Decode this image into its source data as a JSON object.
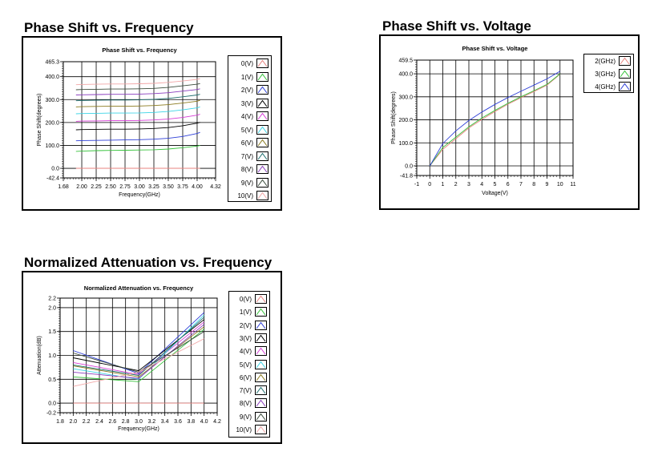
{
  "sections": {
    "phase_freq_title": "Phase Shift vs. Frequency",
    "phase_volt_title": "Phase Shift vs. Voltage",
    "atten_title": "Normalized Attenuation vs. Frequency"
  },
  "colors": {
    "grid": "#000000",
    "palette": [
      "#e8837f",
      "#35c23a",
      "#2e3fd8",
      "#000000",
      "#d63dd6",
      "#3bd4e6",
      "#8a7a1e",
      "#1f6f6f",
      "#8a3dbe",
      "#3a4a3a",
      "#f2a7a7"
    ]
  },
  "chart_data": [
    {
      "type": "line",
      "title": "Phase Shift vs. Frequency",
      "xlabel": "Frequency(GHz)",
      "ylabel": "Phase Shift(degrees)",
      "xlim": [
        1.68,
        4.32
      ],
      "ylim": [
        -41.8,
        465.3
      ],
      "x_ticks": [
        "1.68",
        "2.00",
        "2.25",
        "2.50",
        "2.75",
        "3.00",
        "3.25",
        "3.50",
        "3.75",
        "4.00",
        "4.32"
      ],
      "y_ticks": [
        "465.3",
        "400.0",
        "300.0",
        "200.0",
        "100.0",
        "0.0",
        "-42.4"
      ],
      "grid": true,
      "legend": "right",
      "x": [
        1.9,
        2.0,
        2.25,
        2.5,
        2.75,
        3.0,
        3.25,
        3.5,
        3.75,
        4.0,
        4.05
      ],
      "series": [
        {
          "name": "0(V)",
          "values": [
            0,
            0,
            0,
            0,
            0,
            0,
            0,
            0,
            0,
            0,
            0
          ]
        },
        {
          "name": "1(V)",
          "values": [
            74,
            75,
            77,
            78,
            79,
            80,
            81,
            84,
            90,
            97,
            100
          ]
        },
        {
          "name": "2(V)",
          "values": [
            120,
            121,
            122,
            123,
            124,
            125,
            127,
            131,
            139,
            152,
            157
          ]
        },
        {
          "name": "3(V)",
          "values": [
            168,
            169,
            170,
            171,
            171,
            172,
            174,
            178,
            186,
            197,
            201
          ]
        },
        {
          "name": "4(V)",
          "values": [
            205,
            206,
            207,
            208,
            208,
            209,
            211,
            215,
            222,
            232,
            236
          ]
        },
        {
          "name": "5(V)",
          "values": [
            238,
            239,
            240,
            241,
            241,
            242,
            244,
            248,
            255,
            264,
            268
          ]
        },
        {
          "name": "6(V)",
          "values": [
            268,
            269,
            270,
            271,
            271,
            272,
            274,
            278,
            285,
            293,
            297
          ]
        },
        {
          "name": "7(V)",
          "values": [
            295,
            296,
            297,
            298,
            298,
            299,
            301,
            305,
            312,
            320,
            323
          ]
        },
        {
          "name": "8(V)",
          "values": [
            320,
            321,
            322,
            323,
            323,
            324,
            326,
            330,
            337,
            344,
            347
          ]
        },
        {
          "name": "9(V)",
          "values": [
            343,
            344,
            345,
            346,
            346,
            347,
            349,
            353,
            360,
            367,
            370
          ]
        },
        {
          "name": "10(V)",
          "values": [
            365,
            366,
            367,
            368,
            368,
            369,
            371,
            375,
            381,
            388,
            391
          ]
        }
      ]
    },
    {
      "type": "line",
      "title": "Phase Shift vs. Voltage",
      "xlabel": "Voltage(V)",
      "ylabel": "Phase Shift(degrees)",
      "xlim": [
        -1,
        11
      ],
      "ylim": [
        -41.8,
        459.5
      ],
      "x_ticks": [
        "-1",
        "0",
        "1",
        "2",
        "3",
        "4",
        "5",
        "6",
        "7",
        "8",
        "9",
        "10",
        "11"
      ],
      "y_ticks": [
        "459.5",
        "400.0",
        "300.0",
        "200.0",
        "100.0",
        "0.0",
        "-41.8"
      ],
      "grid": true,
      "legend": "right",
      "x": [
        0,
        1,
        2,
        3,
        4,
        5,
        6,
        7,
        8,
        9,
        10
      ],
      "series": [
        {
          "name": "2(GHz)",
          "values": [
            0,
            72,
            118,
            165,
            202,
            236,
            268,
            296,
            323,
            351,
            398
          ]
        },
        {
          "name": "3(GHz)",
          "values": [
            0,
            80,
            125,
            170,
            208,
            241,
            272,
            300,
            327,
            354,
            400
          ]
        },
        {
          "name": "4(GHz)",
          "values": [
            0,
            97,
            152,
            197,
            234,
            267,
            297,
            324,
            351,
            378,
            411
          ]
        }
      ]
    },
    {
      "type": "line",
      "title": "Normalized Attenuation vs. Frequency",
      "xlabel": "Frequency(GHz)",
      "ylabel": "Attenuation(dB)",
      "xlim": [
        1.8,
        4.2
      ],
      "ylim": [
        -0.2,
        2.2
      ],
      "x_ticks": [
        "1.8",
        "2.0",
        "2.2",
        "2.4",
        "2.6",
        "2.8",
        "3.0",
        "3.2",
        "3.4",
        "3.6",
        "3.8",
        "4.0",
        "4.2"
      ],
      "y_ticks": [
        "2.2",
        "2.0",
        "1.5",
        "1.0",
        "0.5",
        "0.0",
        "-0.2"
      ],
      "grid": true,
      "legend": "right",
      "x": [
        2.0,
        3.0,
        4.0
      ],
      "series": [
        {
          "name": "0(V)",
          "values": [
            0,
            0,
            0
          ]
        },
        {
          "name": "1(V)",
          "values": [
            0.55,
            0.45,
            1.55
          ]
        },
        {
          "name": "2(V)",
          "values": [
            1.1,
            0.62,
            1.9
          ]
        },
        {
          "name": "3(V)",
          "values": [
            0.95,
            0.68,
            1.75
          ]
        },
        {
          "name": "4(V)",
          "values": [
            0.85,
            0.6,
            1.7
          ]
        },
        {
          "name": "5(V)",
          "values": [
            0.72,
            0.5,
            1.85
          ]
        },
        {
          "name": "6(V)",
          "values": [
            0.78,
            0.55,
            1.6
          ]
        },
        {
          "name": "7(V)",
          "values": [
            0.8,
            0.58,
            1.8
          ]
        },
        {
          "name": "8(V)",
          "values": [
            0.65,
            0.52,
            1.65
          ]
        },
        {
          "name": "9(V)",
          "values": [
            1.05,
            0.65,
            1.5
          ]
        },
        {
          "name": "10(V)",
          "values": [
            0.35,
            0.65,
            1.35
          ]
        }
      ]
    }
  ]
}
